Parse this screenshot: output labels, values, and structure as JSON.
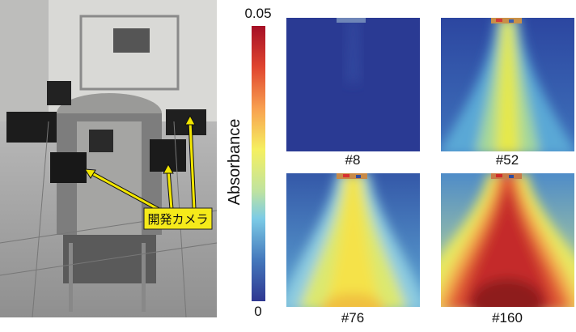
{
  "photo": {
    "label": "開発カメラ"
  },
  "colorbar": {
    "label": "Absorbance",
    "max_label": "0.05",
    "min_label": "0"
  },
  "panels": [
    {
      "label": "#8"
    },
    {
      "label": "#52"
    },
    {
      "label": "#76"
    },
    {
      "label": "#160"
    }
  ]
}
